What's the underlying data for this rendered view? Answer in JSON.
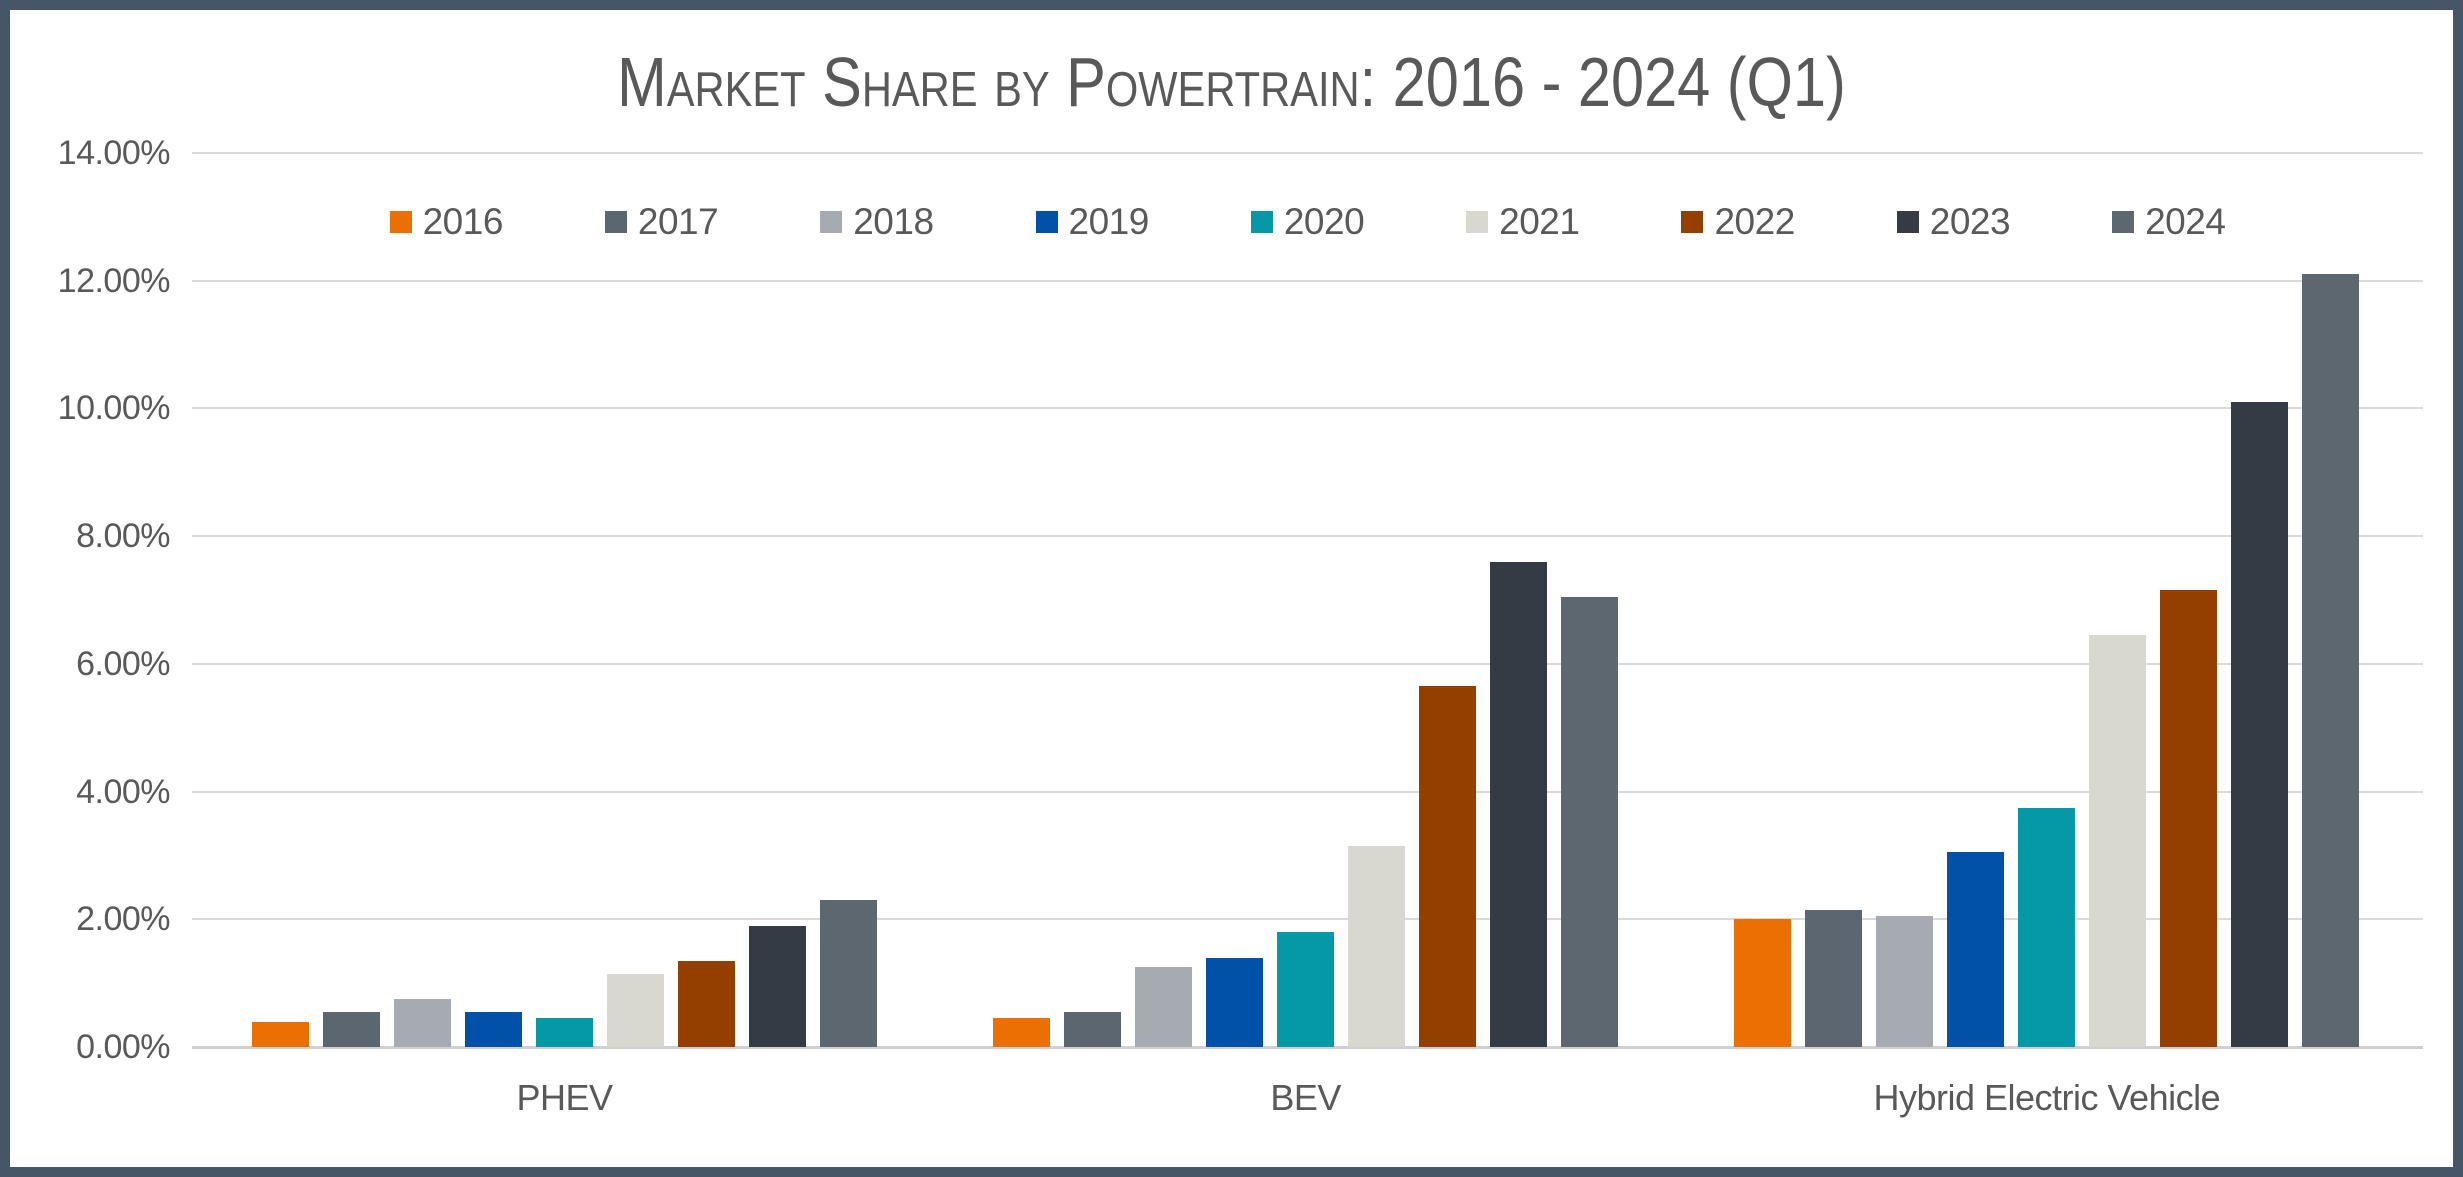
{
  "frame": {
    "border_color": "#475569",
    "background": "#FFFFFF",
    "text_color": "#595959",
    "gridline_color": "#DADADA",
    "baseline_color": "#D0D0D0"
  },
  "chart_data": {
    "type": "bar",
    "title": "Market Share by Powertrain: 2016 - 2024 (Q1)",
    "categories": [
      "PHEV",
      "BEV",
      "Hybrid Electric Vehicle"
    ],
    "series": [
      {
        "name": "2016",
        "color": "#EC6F04",
        "values": [
          0.4,
          0.45,
          2.0
        ]
      },
      {
        "name": "2017",
        "color": "#5B6670",
        "values": [
          0.55,
          0.55,
          2.15
        ]
      },
      {
        "name": "2018",
        "color": "#A5ABB1",
        "values": [
          0.75,
          1.25,
          2.05
        ]
      },
      {
        "name": "2019",
        "color": "#0151A8",
        "values": [
          0.55,
          1.4,
          3.05
        ]
      },
      {
        "name": "2020",
        "color": "#0598A6",
        "values": [
          0.45,
          1.8,
          3.75
        ]
      },
      {
        "name": "2021",
        "color": "#D8D8D1",
        "values": [
          1.15,
          3.15,
          6.45
        ]
      },
      {
        "name": "2022",
        "color": "#943E00",
        "values": [
          1.35,
          5.65,
          7.15
        ]
      },
      {
        "name": "2023",
        "color": "#343B44",
        "values": [
          1.9,
          7.6,
          10.1
        ]
      },
      {
        "name": "2024",
        "color": "#5D6770",
        "values": [
          2.3,
          7.05,
          12.1
        ]
      }
    ],
    "y_axis": {
      "tick_labels": [
        "14.00%",
        "12.00%",
        "10.00%",
        "8.00%",
        "6.00%",
        "4.00%",
        "2.00%",
        "0.00%"
      ],
      "min": 0,
      "max": 14,
      "step": 2,
      "format": "percent"
    },
    "legend": {
      "position": "top",
      "entries": [
        "2016",
        "2017",
        "2018",
        "2019",
        "2020",
        "2021",
        "2022",
        "2023",
        "2024"
      ]
    },
    "grid": true,
    "ylim": [
      0,
      14
    ]
  }
}
